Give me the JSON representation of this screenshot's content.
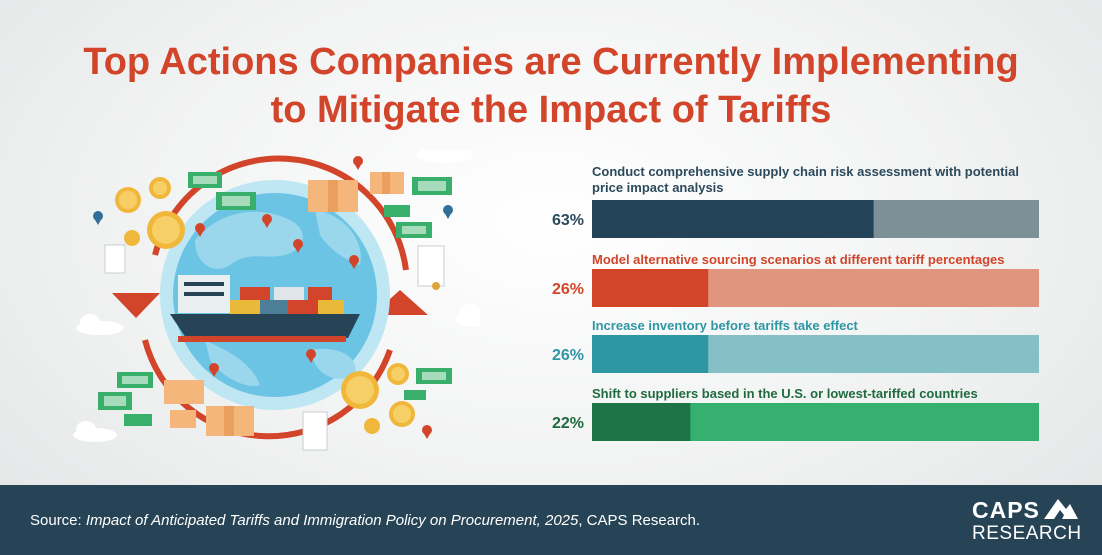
{
  "title": {
    "line1": "Top Actions Companies are Currently Implementing",
    "line2": "to Mitigate the Impact of Tariffs"
  },
  "chart_data": {
    "type": "bar",
    "orientation": "horizontal",
    "xlim": [
      0,
      100
    ],
    "categories": [
      "Conduct comprehensive supply chain risk assessment with potential price impact analysis",
      "Model alternative sourcing scenarios at different tariff percentages",
      "Increase inventory before tariffs take effect",
      "Shift to suppliers based in the U.S. or lowest-tariffed countries"
    ],
    "values": [
      63,
      26,
      26,
      22
    ],
    "value_labels": [
      "63%",
      "26%",
      "26%",
      "22%"
    ],
    "colors": [
      {
        "fill": "#234458",
        "track": "#7d9098",
        "label": "#2c4a5c"
      },
      {
        "fill": "#d2452a",
        "track": "#e0957f",
        "label": "#d2452a"
      },
      {
        "fill": "#2f96a4",
        "track": "#86c0c7",
        "label": "#2f96a4"
      },
      {
        "fill": "#1f7447",
        "track": "#35b06f",
        "label": "#1f6b3f"
      }
    ]
  },
  "illustration": {
    "icons": [
      "globe-icon",
      "cargo-ship-icon",
      "dollar-coin-icon",
      "banknote-icon",
      "map-pin-icon",
      "cardboard-box-icon",
      "certificate-icon",
      "cloud-icon"
    ]
  },
  "footer": {
    "source_prefix": "Source: ",
    "source_title": "Impact of Anticipated Tariffs and Immigration Policy on Procurement, 2025",
    "source_suffix": ", CAPS Research.",
    "logo_top": "CAPS",
    "logo_bottom": "RESEARCH"
  }
}
